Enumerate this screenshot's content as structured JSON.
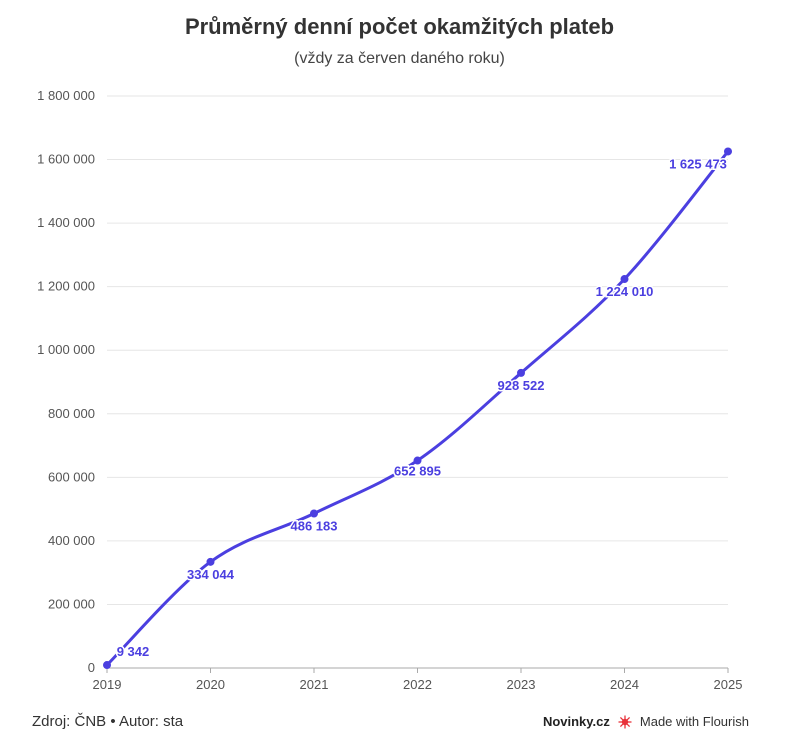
{
  "chart_data": {
    "type": "line",
    "title": "Průměrný denní počet okamžitých plateb",
    "subtitle": "(vždy za červen daného roku)",
    "x": [
      "2019",
      "2020",
      "2021",
      "2022",
      "2023",
      "2024",
      "2025"
    ],
    "series": [
      {
        "values": [
          9342,
          334044,
          486183,
          652895,
          928522,
          1224010,
          1625473
        ],
        "labels": [
          "9 342",
          "334 044",
          "486 183",
          "652 895",
          "928 522",
          "1 224 010",
          "1 625 473"
        ]
      }
    ],
    "y_ticks": [
      0,
      200000,
      400000,
      600000,
      800000,
      1000000,
      1200000,
      1400000,
      1600000,
      1800000
    ],
    "y_tick_labels": [
      "0",
      "200 000",
      "400 000",
      "600 000",
      "800 000",
      "1 000 000",
      "1 200 000",
      "1 400 000",
      "1 600 000",
      "1 800 000"
    ],
    "ylim": [
      0,
      1800000
    ],
    "grid": true,
    "line_color": "#4b3fe0"
  },
  "footer": {
    "source": "Zdroj: ČNB • Autor: sta",
    "brand": "Novinky.cz",
    "flourish": "Made with Flourish"
  }
}
